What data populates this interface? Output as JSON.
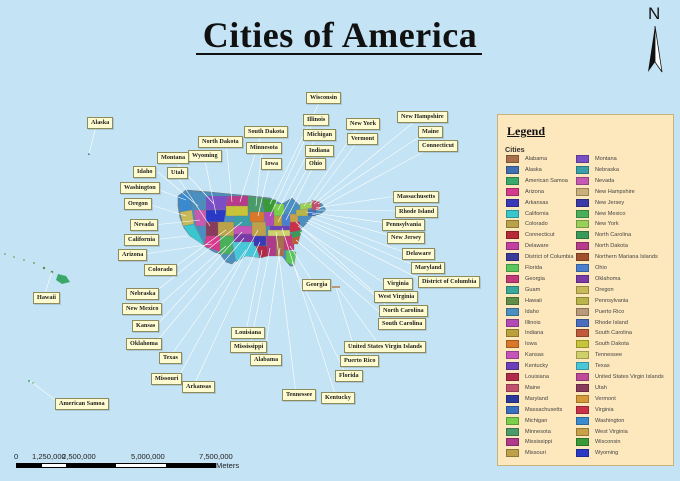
{
  "title": "Cities of America",
  "north_arrow": {
    "letter": "N"
  },
  "colors": {
    "ocean": "#c4e3f4",
    "callout_fill": "#fdfbcf",
    "legend_fill": "#fde7bc"
  },
  "callouts": {
    "alaska": "Alaska",
    "hawaii": "Hawaii",
    "american_samoa": "American Samoa",
    "wisconsin": "Wisconsin",
    "illinois": "Illinois",
    "michigan": "Michigan",
    "indiana": "Indiana",
    "ohio": "Ohio",
    "new_york": "New York",
    "vermont": "Vermont",
    "new_hampshire": "New Hampshire",
    "maine": "Maine",
    "connecticut": "Connecticut",
    "south_dakota": "South Dakota",
    "minnesota": "Minnesota",
    "iowa": "Iowa",
    "north_dakota": "North Dakota",
    "wyoming": "Wyoming",
    "montana": "Montana",
    "idaho": "Idaho",
    "utah": "Utah",
    "washington": "Washington",
    "oregon": "Oregon",
    "nevada": "Nevada",
    "california": "California",
    "arizona": "Arizona",
    "colorado": "Colorado",
    "nebraska": "Nebraska",
    "new_mexico": "New Mexico",
    "kansas": "Kansas",
    "oklahoma": "Oklahoma",
    "texas": "Texas",
    "missouri": "Missouri",
    "arkansas": "Arkansas",
    "louisiana": "Louisiana",
    "mississippi": "Mississippi",
    "alabama": "Alabama",
    "tennessee": "Tennessee",
    "kentucky": "Kentucky",
    "florida": "Florida",
    "puerto_rico": "Puerto Rico",
    "usvi": "United States Virgin Islands",
    "georgia": "Georgia",
    "virginia": "Virginia",
    "west_virginia": "West Virginia",
    "north_carolina": "North Carolina",
    "south_carolina": "South Carolina",
    "massachusetts": "Massachusetts",
    "rhode_island": "Rhode Island",
    "pennsylvania": "Pennsylvania",
    "new_jersey": "New Jersey",
    "delaware": "Delaware",
    "maryland": "Maryland",
    "dc": "District of Columbia"
  },
  "legend": {
    "title": "Legend",
    "subtitle": "Cities",
    "items": [
      {
        "label": "Alabama",
        "color": "#a8704a"
      },
      {
        "label": "Alaska",
        "color": "#3f6fb0"
      },
      {
        "label": "American Samoa",
        "color": "#3aa86a"
      },
      {
        "label": "Arizona",
        "color": "#d63a8c"
      },
      {
        "label": "Arkansas",
        "color": "#3a3ab8"
      },
      {
        "label": "California",
        "color": "#39c6cf"
      },
      {
        "label": "Colorado",
        "color": "#b9a24a"
      },
      {
        "label": "Connecticut",
        "color": "#b52a36"
      },
      {
        "label": "Delaware",
        "color": "#c33fa2"
      },
      {
        "label": "District of Columbia",
        "color": "#3a3a9a"
      },
      {
        "label": "Florida",
        "color": "#5bc65b"
      },
      {
        "label": "Georgia",
        "color": "#c23a7a"
      },
      {
        "label": "Guam",
        "color": "#3aa89a"
      },
      {
        "label": "Hawaii",
        "color": "#5f8f46"
      },
      {
        "label": "Idaho",
        "color": "#4a8fbf"
      },
      {
        "label": "Illinois",
        "color": "#b34ab8"
      },
      {
        "label": "Indiana",
        "color": "#b8a03a"
      },
      {
        "label": "Iowa",
        "color": "#d9782a"
      },
      {
        "label": "Kansas",
        "color": "#c454b8"
      },
      {
        "label": "Kentucky",
        "color": "#6a3fb8"
      },
      {
        "label": "Louisiana",
        "color": "#b02a4a"
      },
      {
        "label": "Maine",
        "color": "#c0506e"
      },
      {
        "label": "Maryland",
        "color": "#2a3a9a"
      },
      {
        "label": "Massachusetts",
        "color": "#3a6fbf"
      },
      {
        "label": "Michigan",
        "color": "#7acf4a"
      },
      {
        "label": "Minnesota",
        "color": "#4a9a6a"
      },
      {
        "label": "Mississippi",
        "color": "#b03a8a"
      },
      {
        "label": "Missouri",
        "color": "#bfa04a"
      },
      {
        "label": "Montana",
        "color": "#7a4fc6"
      },
      {
        "label": "Nebraska",
        "color": "#3a9fa8"
      },
      {
        "label": "Nevada",
        "color": "#c65ab0"
      },
      {
        "label": "New Hampshire",
        "color": "#c9b07a"
      },
      {
        "label": "New Jersey",
        "color": "#3a3aa8"
      },
      {
        "label": "New Mexico",
        "color": "#4aaf5a"
      },
      {
        "label": "New York",
        "color": "#9acf5a"
      },
      {
        "label": "North Carolina",
        "color": "#3a9a5a"
      },
      {
        "label": "North Dakota",
        "color": "#b83a8a"
      },
      {
        "label": "Northern Mariana Islands",
        "color": "#a0502a"
      },
      {
        "label": "Ohio",
        "color": "#4a7fcf"
      },
      {
        "label": "Oklahoma",
        "color": "#7a3aa8"
      },
      {
        "label": "Oregon",
        "color": "#c8ba5a"
      },
      {
        "label": "Pennsylvania",
        "color": "#b9b54a"
      },
      {
        "label": "Puerto Rico",
        "color": "#b89a7a"
      },
      {
        "label": "Rhode Island",
        "color": "#4a6fbf"
      },
      {
        "label": "South Carolina",
        "color": "#c05a3a"
      },
      {
        "label": "South Dakota",
        "color": "#c8c43a"
      },
      {
        "label": "Tennessee",
        "color": "#cfd06a"
      },
      {
        "label": "Texas",
        "color": "#4ac6d9"
      },
      {
        "label": "United States Virgin Islands",
        "color": "#bf4a9a"
      },
      {
        "label": "Utah",
        "color": "#8a3a5a"
      },
      {
        "label": "Vermont",
        "color": "#d69a3a"
      },
      {
        "label": "Virginia",
        "color": "#c9304a"
      },
      {
        "label": "Washington",
        "color": "#3a8acf"
      },
      {
        "label": "West Virginia",
        "color": "#c9a04a"
      },
      {
        "label": "Wisconsin",
        "color": "#3a9a3a"
      },
      {
        "label": "Wyoming",
        "color": "#2a3ac6"
      }
    ]
  },
  "scale": {
    "labels": [
      "0",
      "1,250,000",
      "2,500,000",
      "5,000,000",
      "7,500,000"
    ],
    "unit": "Meters"
  }
}
